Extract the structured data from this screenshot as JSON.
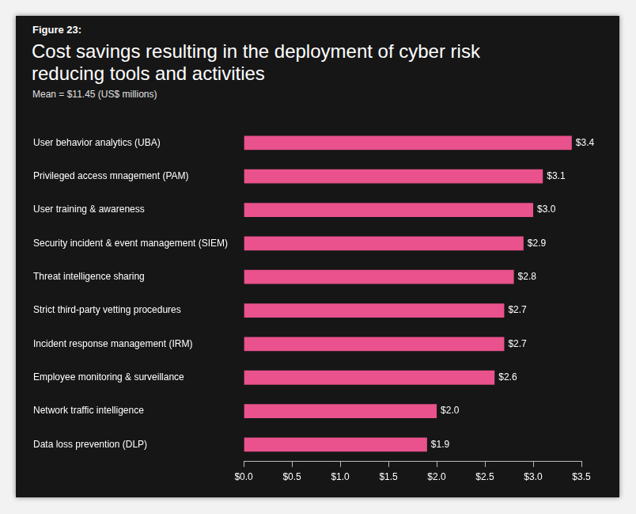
{
  "chart_data": {
    "type": "bar",
    "orientation": "horizontal",
    "caption": "Figure 23:",
    "title": "Cost savings resulting in the deployment of cyber risk reducing tools and activities",
    "subtitle": "Mean = $11.45 (US$ millions)",
    "categories": [
      "User behavior analytics (UBA)",
      "Privileged access mnagement (PAM)",
      "User training & awareness",
      "Security incident & event management (SIEM)",
      "Threat intelligence sharing",
      "Strict third-party vetting procedures",
      "Incident response management (IRM)",
      "Employee monitoring & surveillance",
      "Network traffic intelligence",
      "Data loss prevention (DLP)"
    ],
    "values": [
      3.4,
      3.1,
      3.0,
      2.9,
      2.8,
      2.7,
      2.7,
      2.6,
      2.0,
      1.9
    ],
    "value_labels": [
      "$3.4",
      "$3.1",
      "$3.0",
      "$2.9",
      "$2.8",
      "$2.7",
      "$2.7",
      "$2.6",
      "$2.0",
      "$1.9"
    ],
    "data_labels": true,
    "color": "#e9528c",
    "xlim": [
      0,
      3.5
    ],
    "xticks": [
      {
        "value": 0,
        "label": "$0.0"
      },
      {
        "value": 0.5,
        "label": "$0.5"
      },
      {
        "value": 1,
        "label": "$1.0"
      },
      {
        "value": 1.5,
        "label": "$1.5"
      },
      {
        "value": 2,
        "label": "$2.0"
      },
      {
        "value": 2.5,
        "label": "$2.5"
      },
      {
        "value": 3,
        "label": "$3.0"
      },
      {
        "value": 3.5,
        "label": "$3.5"
      }
    ],
    "grid": false
  }
}
